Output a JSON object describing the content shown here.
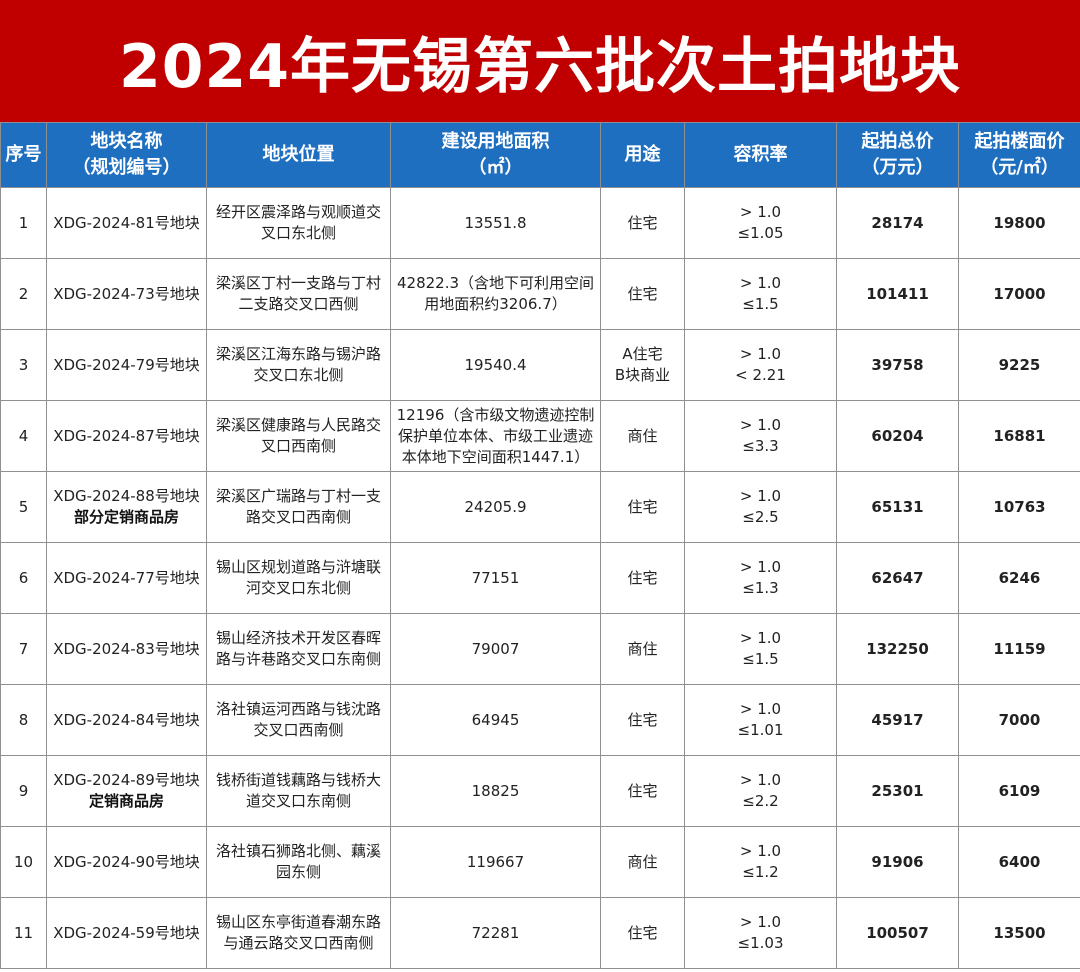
{
  "title": "2024年无锡第六批次土拍地块",
  "headers": {
    "seq": "序号",
    "name": [
      "地块名称",
      "（规划编号）"
    ],
    "location": "地块位置",
    "area": [
      "建设用地面积",
      "（㎡）"
    ],
    "use": "用途",
    "far": "容积率",
    "total_price": [
      "起拍总价",
      "（万元）"
    ],
    "unit_price": [
      "起拍楼面价",
      "（元/㎡）"
    ]
  },
  "rows": [
    {
      "seq": "1",
      "name": "XDG-2024-81号地块",
      "note": "",
      "location": [
        "经开区震泽路与观顺道交",
        "叉口东北侧"
      ],
      "area": [
        "13551.8"
      ],
      "use": [
        "住宅"
      ],
      "far": [
        "> 1.0",
        "≤1.05"
      ],
      "total_price": "28174",
      "unit_price": "19800"
    },
    {
      "seq": "2",
      "name": "XDG-2024-73号地块",
      "note": "",
      "location": [
        "梁溪区丁村一支路与丁村",
        "二支路交叉口西侧"
      ],
      "area": [
        "42822.3（含地下可利用空间",
        "用地面积约3206.7）"
      ],
      "use": [
        "住宅"
      ],
      "far": [
        "> 1.0",
        "≤1.5"
      ],
      "total_price": "101411",
      "unit_price": "17000"
    },
    {
      "seq": "3",
      "name": "XDG-2024-79号地块",
      "note": "",
      "location": [
        "梁溪区江海东路与锡沪路",
        "交叉口东北侧"
      ],
      "area": [
        "19540.4"
      ],
      "use": [
        "A住宅",
        "B块商业"
      ],
      "far": [
        "> 1.0",
        "< 2.21"
      ],
      "total_price": "39758",
      "unit_price": "9225"
    },
    {
      "seq": "4",
      "name": "XDG-2024-87号地块",
      "note": "",
      "location": [
        "梁溪区健康路与人民路交",
        "叉口西南侧"
      ],
      "area": [
        "12196（含市级文物遗迹控制",
        "保护单位本体、市级工业遗迹",
        "本体地下空间面积1447.1）"
      ],
      "use": [
        "商住"
      ],
      "far": [
        "> 1.0",
        "≤3.3"
      ],
      "total_price": "60204",
      "unit_price": "16881"
    },
    {
      "seq": "5",
      "name": "XDG-2024-88号地块",
      "note": "部分定销商品房",
      "location": [
        "梁溪区广瑞路与丁村一支",
        "路交叉口西南侧"
      ],
      "area": [
        "24205.9"
      ],
      "use": [
        "住宅"
      ],
      "far": [
        "> 1.0",
        "≤2.5"
      ],
      "total_price": "65131",
      "unit_price": "10763"
    },
    {
      "seq": "6",
      "name": "XDG-2024-77号地块",
      "note": "",
      "location": [
        "锡山区规划道路与浒塘联",
        "河交叉口东北侧"
      ],
      "area": [
        "77151"
      ],
      "use": [
        "住宅"
      ],
      "far": [
        "> 1.0",
        "≤1.3"
      ],
      "total_price": "62647",
      "unit_price": "6246"
    },
    {
      "seq": "7",
      "name": "XDG-2024-83号地块",
      "note": "",
      "location": [
        "锡山经济技术开发区春晖",
        "路与许巷路交叉口东南侧"
      ],
      "area": [
        "79007"
      ],
      "use": [
        "商住"
      ],
      "far": [
        "> 1.0",
        "≤1.5"
      ],
      "total_price": "132250",
      "unit_price": "11159"
    },
    {
      "seq": "8",
      "name": "XDG-2024-84号地块",
      "note": "",
      "location": [
        "洛社镇运河西路与钱沈路",
        "交叉口西南侧"
      ],
      "area": [
        "64945"
      ],
      "use": [
        "住宅"
      ],
      "far": [
        "> 1.0",
        "≤1.01"
      ],
      "total_price": "45917",
      "unit_price": "7000"
    },
    {
      "seq": "9",
      "name": "XDG-2024-89号地块",
      "note": "定销商品房",
      "location": [
        "钱桥街道钱藕路与钱桥大",
        "道交叉口东南侧"
      ],
      "area": [
        "18825"
      ],
      "use": [
        "住宅"
      ],
      "far": [
        "> 1.0",
        "≤2.2"
      ],
      "total_price": "25301",
      "unit_price": "6109"
    },
    {
      "seq": "10",
      "name": "XDG-2024-90号地块",
      "note": "",
      "location": [
        "洛社镇石狮路北侧、藕溪",
        "园东侧"
      ],
      "area": [
        "119667"
      ],
      "use": [
        "商住"
      ],
      "far": [
        "> 1.0",
        "≤1.2"
      ],
      "total_price": "91906",
      "unit_price": "6400"
    },
    {
      "seq": "11",
      "name": "XDG-2024-59号地块",
      "note": "",
      "location": [
        "锡山区东亭街道春潮东路",
        "与通云路交叉口西南侧"
      ],
      "area": [
        "72281"
      ],
      "use": [
        "住宅"
      ],
      "far": [
        "> 1.0",
        "≤1.03"
      ],
      "total_price": "100507",
      "unit_price": "13500"
    }
  ]
}
